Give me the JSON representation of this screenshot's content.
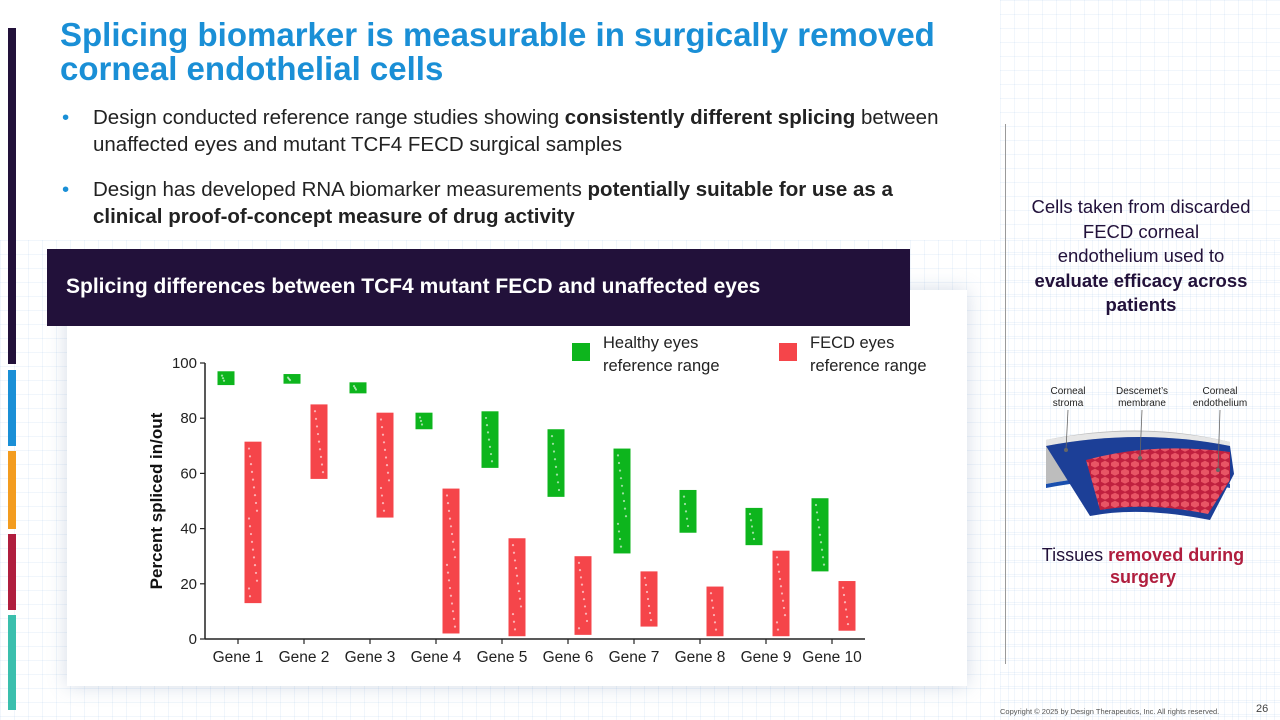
{
  "title": "Splicing biomarker is measurable in surgically removed corneal endothelial cells",
  "bullets": [
    {
      "pre": "Design conducted reference range studies showing ",
      "bold": "consistently different splicing",
      "post": " between unaffected eyes and mutant TCF4 FECD surgical samples"
    },
    {
      "pre": "Design has developed RNA biomarker measurements ",
      "bold": "potentially suitable for use as a clinical proof-of-concept measure of drug activity",
      "post": ""
    }
  ],
  "chart_header": "Splicing differences between TCF4 mutant FECD and unaffected eyes",
  "side_panel": {
    "pre": "Cells taken from discarded FECD corneal endothelium used to ",
    "bold": "evaluate efficacy across patients",
    "tissue_labels": [
      "Corneal stroma",
      "Descemet’s membrane",
      "Corneal endothelium"
    ],
    "caption_pre": "Tissues ",
    "caption_red": "removed during surgery"
  },
  "copyright": "Copyright © 2025 by Design Therapeutics, Inc. All rights reserved.",
  "page_number": "26",
  "colors": {
    "title_blue": "#1a8fd6",
    "dark_navy": "#22113a",
    "healthy_green": "#0db51d",
    "fecd_red": "#f5454a",
    "accent_red": "#b01e3e",
    "left_bar": [
      "#22113a",
      "#1a8fd6",
      "#f39c1f",
      "#b01e3e",
      "#3bbfad"
    ]
  },
  "chart_data": {
    "type": "floating-bar",
    "xlabel": "",
    "ylabel": "Percent spliced in/out",
    "ylim": [
      0,
      100
    ],
    "yticks": [
      0,
      20,
      40,
      60,
      80,
      100
    ],
    "categories": [
      "Gene 1",
      "Gene 2",
      "Gene 3",
      "Gene 4",
      "Gene 5",
      "Gene 6",
      "Gene 7",
      "Gene 8",
      "Gene 9",
      "Gene 10"
    ],
    "legend_position": "top-right",
    "series": [
      {
        "name": "Healthy eyes reference range",
        "color": "#0db51d",
        "ranges": [
          [
            92,
            97
          ],
          [
            92.5,
            96
          ],
          [
            89,
            93
          ],
          [
            76,
            82
          ],
          [
            62,
            82.5
          ],
          [
            51.5,
            76
          ],
          [
            31,
            69
          ],
          [
            38.5,
            54
          ],
          [
            34,
            47.5
          ],
          [
            24.5,
            51
          ]
        ]
      },
      {
        "name": "FECD eyes reference range",
        "color": "#f5454a",
        "ranges": [
          [
            13,
            71.5
          ],
          [
            58,
            85
          ],
          [
            44,
            82
          ],
          [
            2,
            54.5
          ],
          [
            1,
            36.5
          ],
          [
            1.5,
            30
          ],
          [
            4.5,
            24.5
          ],
          [
            1,
            19
          ],
          [
            1,
            32
          ],
          [
            3,
            21
          ]
        ]
      }
    ]
  }
}
